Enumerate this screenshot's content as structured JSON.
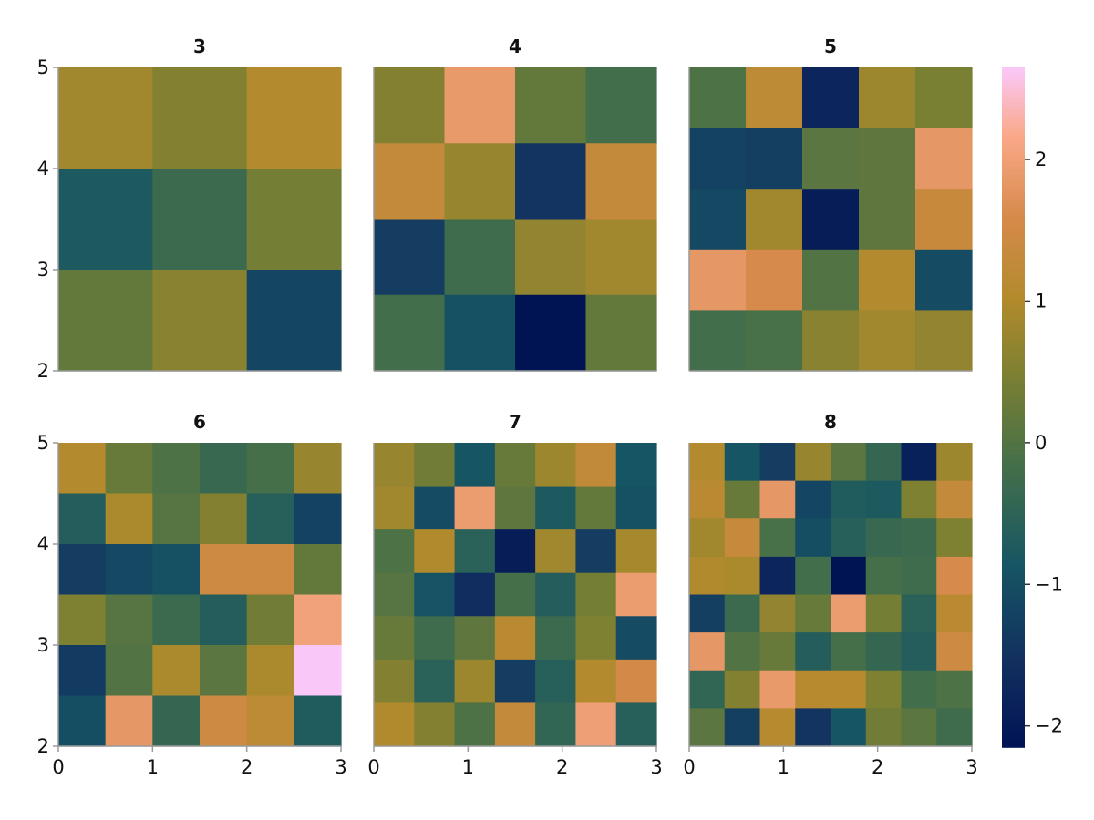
{
  "chart_data": {
    "type": "heatmap",
    "colormap": "batlow-like (navy → teal → olive → orange → pink)",
    "colorbar": {
      "range": [
        -2.15,
        2.65
      ],
      "ticks": [
        -2,
        -1,
        0,
        1,
        2
      ],
      "tick_labels": [
        "−2",
        "−1",
        "0",
        "1",
        "2"
      ]
    },
    "panels": [
      {
        "title": "3",
        "n": 3,
        "xlim": [
          0,
          3
        ],
        "ylim": [
          2,
          5
        ],
        "xticks": [],
        "yticks": [
          "2",
          "3",
          "4",
          "5"
        ],
        "rows_top_to_bottom": [
          [
            0.85,
            0.55,
            1.05
          ],
          [
            -0.75,
            -0.3,
            0.4
          ],
          [
            0.2,
            0.6,
            -1.15
          ]
        ]
      },
      {
        "title": "4",
        "n": 4,
        "xlim": [
          0,
          3
        ],
        "ylim": [
          2,
          5
        ],
        "xticks": [],
        "yticks": [],
        "rows_top_to_bottom": [
          [
            0.55,
            1.9,
            0.2,
            -0.2
          ],
          [
            1.3,
            0.75,
            -1.45,
            1.3
          ],
          [
            -1.3,
            -0.25,
            0.7,
            0.85
          ],
          [
            -0.2,
            -0.95,
            -2.15,
            0.2
          ]
        ]
      },
      {
        "title": "5",
        "n": 5,
        "xlim": [
          0,
          3
        ],
        "ylim": [
          2,
          5
        ],
        "xticks": [],
        "yticks": [],
        "rows_top_to_bottom": [
          [
            -0.05,
            1.2,
            -1.75,
            0.8,
            0.45
          ],
          [
            -1.2,
            -1.25,
            0.1,
            0.15,
            1.85
          ],
          [
            -1.1,
            0.85,
            -1.95,
            0.15,
            1.35
          ],
          [
            1.85,
            1.6,
            0.0,
            1.05,
            -1.05
          ],
          [
            -0.2,
            -0.1,
            0.6,
            0.85,
            0.7
          ]
        ]
      },
      {
        "title": "6",
        "n": 6,
        "xlim": [
          0,
          3
        ],
        "ylim": [
          2,
          5
        ],
        "xticks": [
          "0",
          "1",
          "2",
          "3"
        ],
        "yticks": [
          "2",
          "3",
          "4",
          "5"
        ],
        "rows_top_to_bottom": [
          [
            1.05,
            0.25,
            -0.05,
            -0.35,
            -0.15,
            0.75
          ],
          [
            -0.65,
            0.95,
            0.05,
            0.55,
            -0.6,
            -1.2
          ],
          [
            -1.3,
            -1.1,
            -0.95,
            1.45,
            1.45,
            0.2
          ],
          [
            0.5,
            0.05,
            -0.3,
            -0.65,
            0.35,
            2.05
          ],
          [
            -1.35,
            0.0,
            0.95,
            0.1,
            0.95,
            2.65
          ],
          [
            -1.0,
            1.85,
            -0.4,
            1.45,
            1.2,
            -0.7
          ]
        ]
      },
      {
        "title": "7",
        "n": 7,
        "xlim": [
          0,
          3
        ],
        "ylim": [
          2,
          5
        ],
        "xticks": [
          "0",
          "1",
          "2",
          "3"
        ],
        "yticks": [],
        "rows_top_to_bottom": [
          [
            0.75,
            0.35,
            -0.85,
            0.25,
            0.8,
            1.25,
            -0.85
          ],
          [
            0.85,
            -1.05,
            1.95,
            0.15,
            -0.75,
            0.2,
            -0.95
          ],
          [
            -0.05,
            1.0,
            -0.55,
            -1.95,
            0.85,
            -1.3,
            0.9
          ],
          [
            0.05,
            -0.9,
            -1.6,
            -0.15,
            -0.65,
            0.4,
            1.95
          ],
          [
            0.25,
            -0.25,
            0.15,
            1.15,
            -0.3,
            0.5,
            -1.05
          ],
          [
            0.55,
            -0.55,
            0.8,
            -1.3,
            -0.6,
            1.05,
            1.55
          ],
          [
            1.0,
            0.55,
            -0.05,
            1.3,
            -0.45,
            2.0,
            -0.6
          ]
        ]
      },
      {
        "title": "8",
        "n": 8,
        "xlim": [
          0,
          3
        ],
        "ylim": [
          2,
          5
        ],
        "xticks": [
          "0",
          "1",
          "2",
          "3"
        ],
        "yticks": [],
        "rows_top_to_bottom": [
          [
            1.05,
            -0.85,
            -1.3,
            0.75,
            0.1,
            -0.4,
            -1.85,
            0.8
          ],
          [
            1.15,
            0.25,
            1.85,
            -1.15,
            -0.7,
            -0.75,
            0.5,
            1.3
          ],
          [
            0.85,
            1.35,
            -0.1,
            -1.0,
            -0.6,
            -0.35,
            -0.3,
            0.5
          ],
          [
            1.0,
            0.95,
            -1.75,
            -0.2,
            -2.15,
            -0.15,
            -0.25,
            1.6
          ],
          [
            -1.25,
            -0.3,
            0.7,
            0.25,
            1.95,
            0.4,
            -0.55,
            1.15
          ],
          [
            1.85,
            0.0,
            0.25,
            -0.65,
            -0.15,
            -0.4,
            -0.65,
            1.45
          ],
          [
            -0.45,
            0.55,
            1.9,
            1.1,
            1.1,
            0.5,
            -0.2,
            -0.05
          ],
          [
            0.1,
            -1.25,
            1.1,
            -1.45,
            -0.85,
            0.35,
            0.1,
            -0.25
          ]
        ]
      }
    ]
  }
}
